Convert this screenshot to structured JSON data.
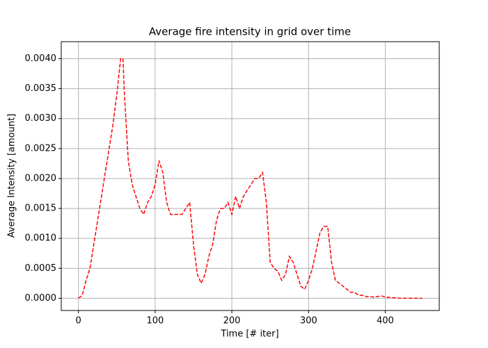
{
  "chart_data": {
    "type": "line",
    "title": "Average fire intensity in grid over time",
    "xlabel": "Time [# iter]",
    "ylabel": "Average Intensity [amount]",
    "x": [
      0,
      5,
      10,
      15,
      20,
      25,
      30,
      35,
      40,
      45,
      50,
      55,
      58,
      60,
      65,
      70,
      75,
      80,
      85,
      90,
      95,
      100,
      105,
      110,
      115,
      120,
      125,
      130,
      135,
      140,
      145,
      150,
      155,
      160,
      165,
      170,
      175,
      180,
      185,
      190,
      195,
      200,
      205,
      210,
      215,
      220,
      225,
      230,
      235,
      240,
      245,
      250,
      255,
      260,
      265,
      270,
      275,
      280,
      285,
      290,
      295,
      300,
      305,
      310,
      315,
      320,
      325,
      330,
      335,
      340,
      345,
      350,
      355,
      360,
      365,
      370,
      375,
      380,
      385,
      390,
      395,
      400,
      410,
      420,
      430,
      440,
      448
    ],
    "series": [
      {
        "name": "average intensity",
        "color": "#ff0000",
        "values": [
          0,
          5e-05,
          0.0003,
          0.0005,
          0.0009,
          0.0013,
          0.0017,
          0.0021,
          0.0025,
          0.0029,
          0.0034,
          0.004,
          0.004,
          0.0034,
          0.0023,
          0.0019,
          0.0017,
          0.0015,
          0.0014,
          0.0016,
          0.0017,
          0.0019,
          0.0023,
          0.0021,
          0.0016,
          0.0014,
          0.0014,
          0.0014,
          0.0014,
          0.0015,
          0.0016,
          0.0009,
          0.0004,
          0.00025,
          0.0004,
          0.0007,
          0.0009,
          0.0013,
          0.0015,
          0.0015,
          0.0016,
          0.0014,
          0.0017,
          0.0015,
          0.0017,
          0.0018,
          0.0019,
          0.002,
          0.002,
          0.0021,
          0.0016,
          0.0006,
          0.0005,
          0.00045,
          0.0003,
          0.0004,
          0.0007,
          0.0006,
          0.0004,
          0.0002,
          0.00015,
          0.0003,
          0.0005,
          0.0008,
          0.0011,
          0.0012,
          0.0012,
          0.0006,
          0.0003,
          0.00025,
          0.0002,
          0.00015,
          0.0001,
          0.0001,
          5e-05,
          5e-05,
          3e-05,
          3e-05,
          2e-05,
          3e-05,
          4e-05,
          2e-05,
          1e-05,
          0,
          0,
          0,
          0
        ]
      }
    ],
    "xlim": [
      -22.4,
      470.4
    ],
    "ylim": [
      -0.000204,
      0.004284
    ],
    "xticks": [
      0,
      100,
      200,
      300,
      400
    ],
    "yticks": [
      {
        "value": 0,
        "label": "0.0000"
      },
      {
        "value": 0.0005,
        "label": "0.0005"
      },
      {
        "value": 0.001,
        "label": "0.0010"
      },
      {
        "value": 0.0015,
        "label": "0.0015"
      },
      {
        "value": 0.002,
        "label": "0.0020"
      },
      {
        "value": 0.0025,
        "label": "0.0025"
      },
      {
        "value": 0.003,
        "label": "0.0030"
      },
      {
        "value": 0.0035,
        "label": "0.0035"
      },
      {
        "value": 0.004,
        "label": "0.0040"
      }
    ],
    "grid": true,
    "dashed": true
  }
}
